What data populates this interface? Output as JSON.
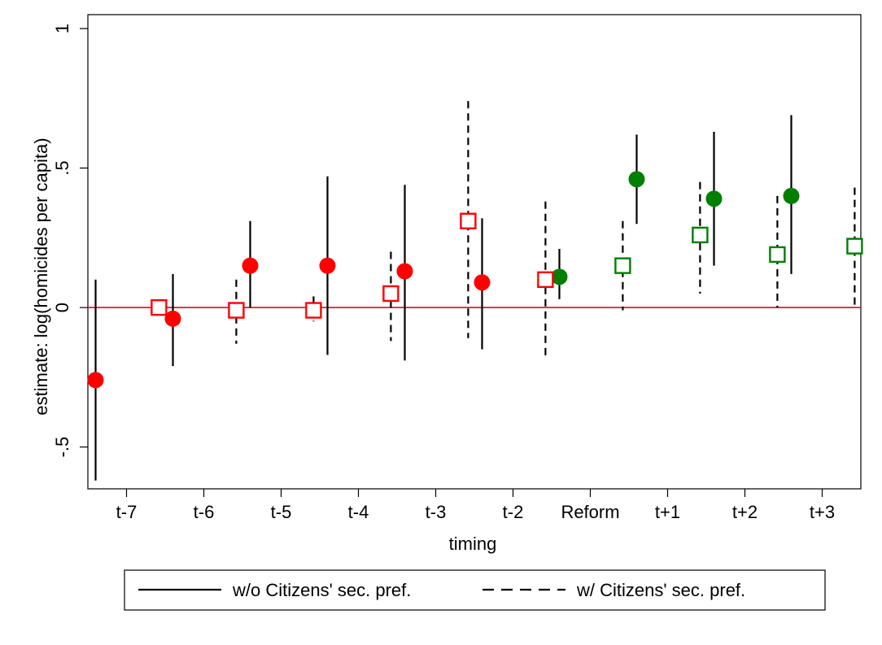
{
  "chart_data": {
    "type": "scatter",
    "xlabel": "timing",
    "ylabel": "estimate: log(homicides per capita)",
    "categories": [
      "t-7",
      "t-6",
      "t-5",
      "t-4",
      "t-3",
      "t-2",
      "Reform",
      "t+1",
      "t+2",
      "t+3"
    ],
    "ylim": [
      -0.65,
      1.05
    ],
    "yticks": [
      {
        "value": 1,
        "label": "1"
      },
      {
        "value": 0.5,
        "label": ".5"
      },
      {
        "value": 0,
        "label": "0"
      },
      {
        "value": -0.5,
        "label": "-.5"
      }
    ],
    "grid": false,
    "reference_line": {
      "y": 0,
      "color": "#c4122f"
    },
    "legend": {
      "position": "bottom"
    },
    "series": [
      {
        "name": "w/o Citizens' sec. pref.",
        "line_style": "solid",
        "marker": "filled-circle",
        "points": [
          {
            "x": "t-7",
            "y": -0.26,
            "lo": -0.62,
            "hi": 0.1,
            "color": "#ff0000"
          },
          {
            "x": "t-6",
            "y": -0.04,
            "lo": -0.21,
            "hi": 0.12,
            "color": "#ff0000"
          },
          {
            "x": "t-5",
            "y": 0.15,
            "lo": 0.0,
            "hi": 0.31,
            "color": "#ff0000"
          },
          {
            "x": "t-4",
            "y": 0.15,
            "lo": -0.17,
            "hi": 0.47,
            "color": "#ff0000"
          },
          {
            "x": "t-3",
            "y": 0.13,
            "lo": -0.19,
            "hi": 0.44,
            "color": "#ff0000"
          },
          {
            "x": "t-2",
            "y": 0.09,
            "lo": -0.15,
            "hi": 0.32,
            "color": "#ff0000"
          },
          {
            "x": "Reform",
            "y": 0.11,
            "lo": 0.03,
            "hi": 0.21,
            "color": "#007f00"
          },
          {
            "x": "t+1",
            "y": 0.46,
            "lo": 0.3,
            "hi": 0.62,
            "color": "#007f00"
          },
          {
            "x": "t+2",
            "y": 0.39,
            "lo": 0.15,
            "hi": 0.63,
            "color": "#007f00"
          },
          {
            "x": "t+3",
            "y": 0.4,
            "lo": 0.12,
            "hi": 0.69,
            "color": "#007f00"
          }
        ]
      },
      {
        "name": "w/ Citizens' sec. pref.",
        "line_style": "dashed",
        "marker": "hollow-square",
        "points": [
          {
            "x": "t-7",
            "y": 0.0,
            "lo": null,
            "hi": null,
            "color": "#ff0000"
          },
          {
            "x": "t-6",
            "y": -0.01,
            "lo": -0.13,
            "hi": 0.1,
            "color": "#ff0000"
          },
          {
            "x": "t-5",
            "y": -0.01,
            "lo": -0.05,
            "hi": 0.04,
            "color": "#ff0000"
          },
          {
            "x": "t-4",
            "y": 0.05,
            "lo": -0.12,
            "hi": 0.2,
            "color": "#ff0000"
          },
          {
            "x": "t-3",
            "y": 0.31,
            "lo": -0.11,
            "hi": 0.74,
            "color": "#ff0000"
          },
          {
            "x": "t-2",
            "y": 0.1,
            "lo": -0.18,
            "hi": 0.38,
            "color": "#ff0000"
          },
          {
            "x": "Reform",
            "y": 0.15,
            "lo": -0.01,
            "hi": 0.31,
            "color": "#007f00"
          },
          {
            "x": "t+1",
            "y": 0.26,
            "lo": 0.05,
            "hi": 0.45,
            "color": "#007f00"
          },
          {
            "x": "t+2",
            "y": 0.19,
            "lo": 0.0,
            "hi": 0.4,
            "color": "#007f00"
          },
          {
            "x": "t+3",
            "y": 0.22,
            "lo": 0.0,
            "hi": 0.43,
            "color": "#007f00"
          }
        ]
      }
    ]
  }
}
